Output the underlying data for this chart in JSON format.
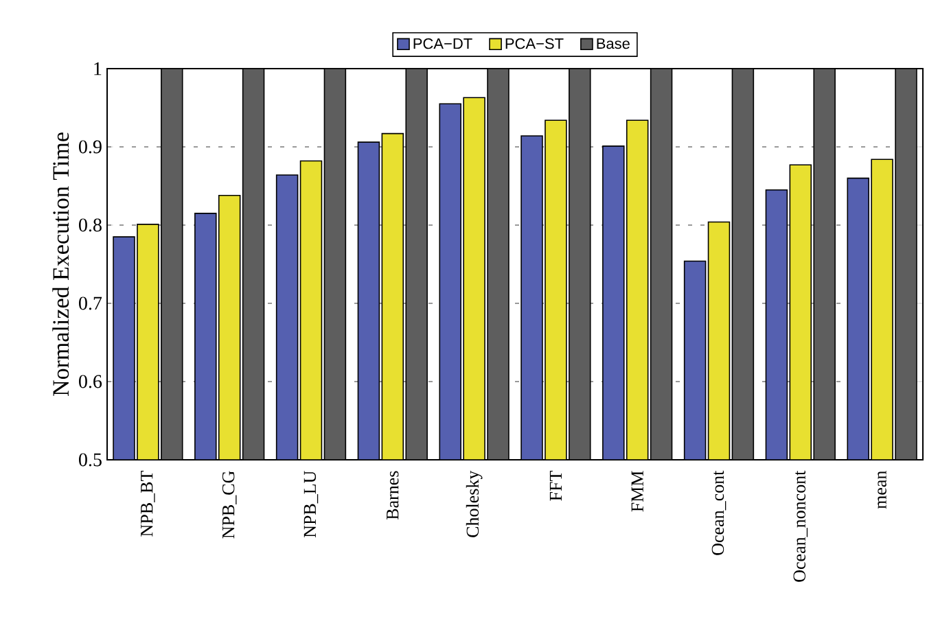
{
  "chart_data": {
    "type": "bar",
    "ylabel": "Normalized Execution Time",
    "categories": [
      "NPB_BT",
      "NPB_CG",
      "NPB_LU",
      "Barnes",
      "Cholesky",
      "FFT",
      "FMM",
      "Ocean_cont",
      "Ocean_noncont",
      "mean"
    ],
    "series": [
      {
        "name": "PCA−DT",
        "color": "#5560b0",
        "values": [
          0.785,
          0.815,
          0.864,
          0.906,
          0.955,
          0.914,
          0.901,
          0.754,
          0.845,
          0.86
        ]
      },
      {
        "name": "PCA−ST",
        "color": "#e8e030",
        "values": [
          0.801,
          0.838,
          0.882,
          0.917,
          0.963,
          0.934,
          0.934,
          0.804,
          0.877,
          0.884
        ]
      },
      {
        "name": "Base",
        "color": "#5e5e5e",
        "values": [
          1,
          1,
          1,
          1,
          1,
          1,
          1,
          1,
          1,
          1
        ]
      }
    ],
    "ylim": [
      0.5,
      1
    ],
    "yticks": [
      0.5,
      0.6,
      0.7,
      0.8,
      0.9,
      1
    ],
    "grid": "y",
    "legend": "top"
  }
}
